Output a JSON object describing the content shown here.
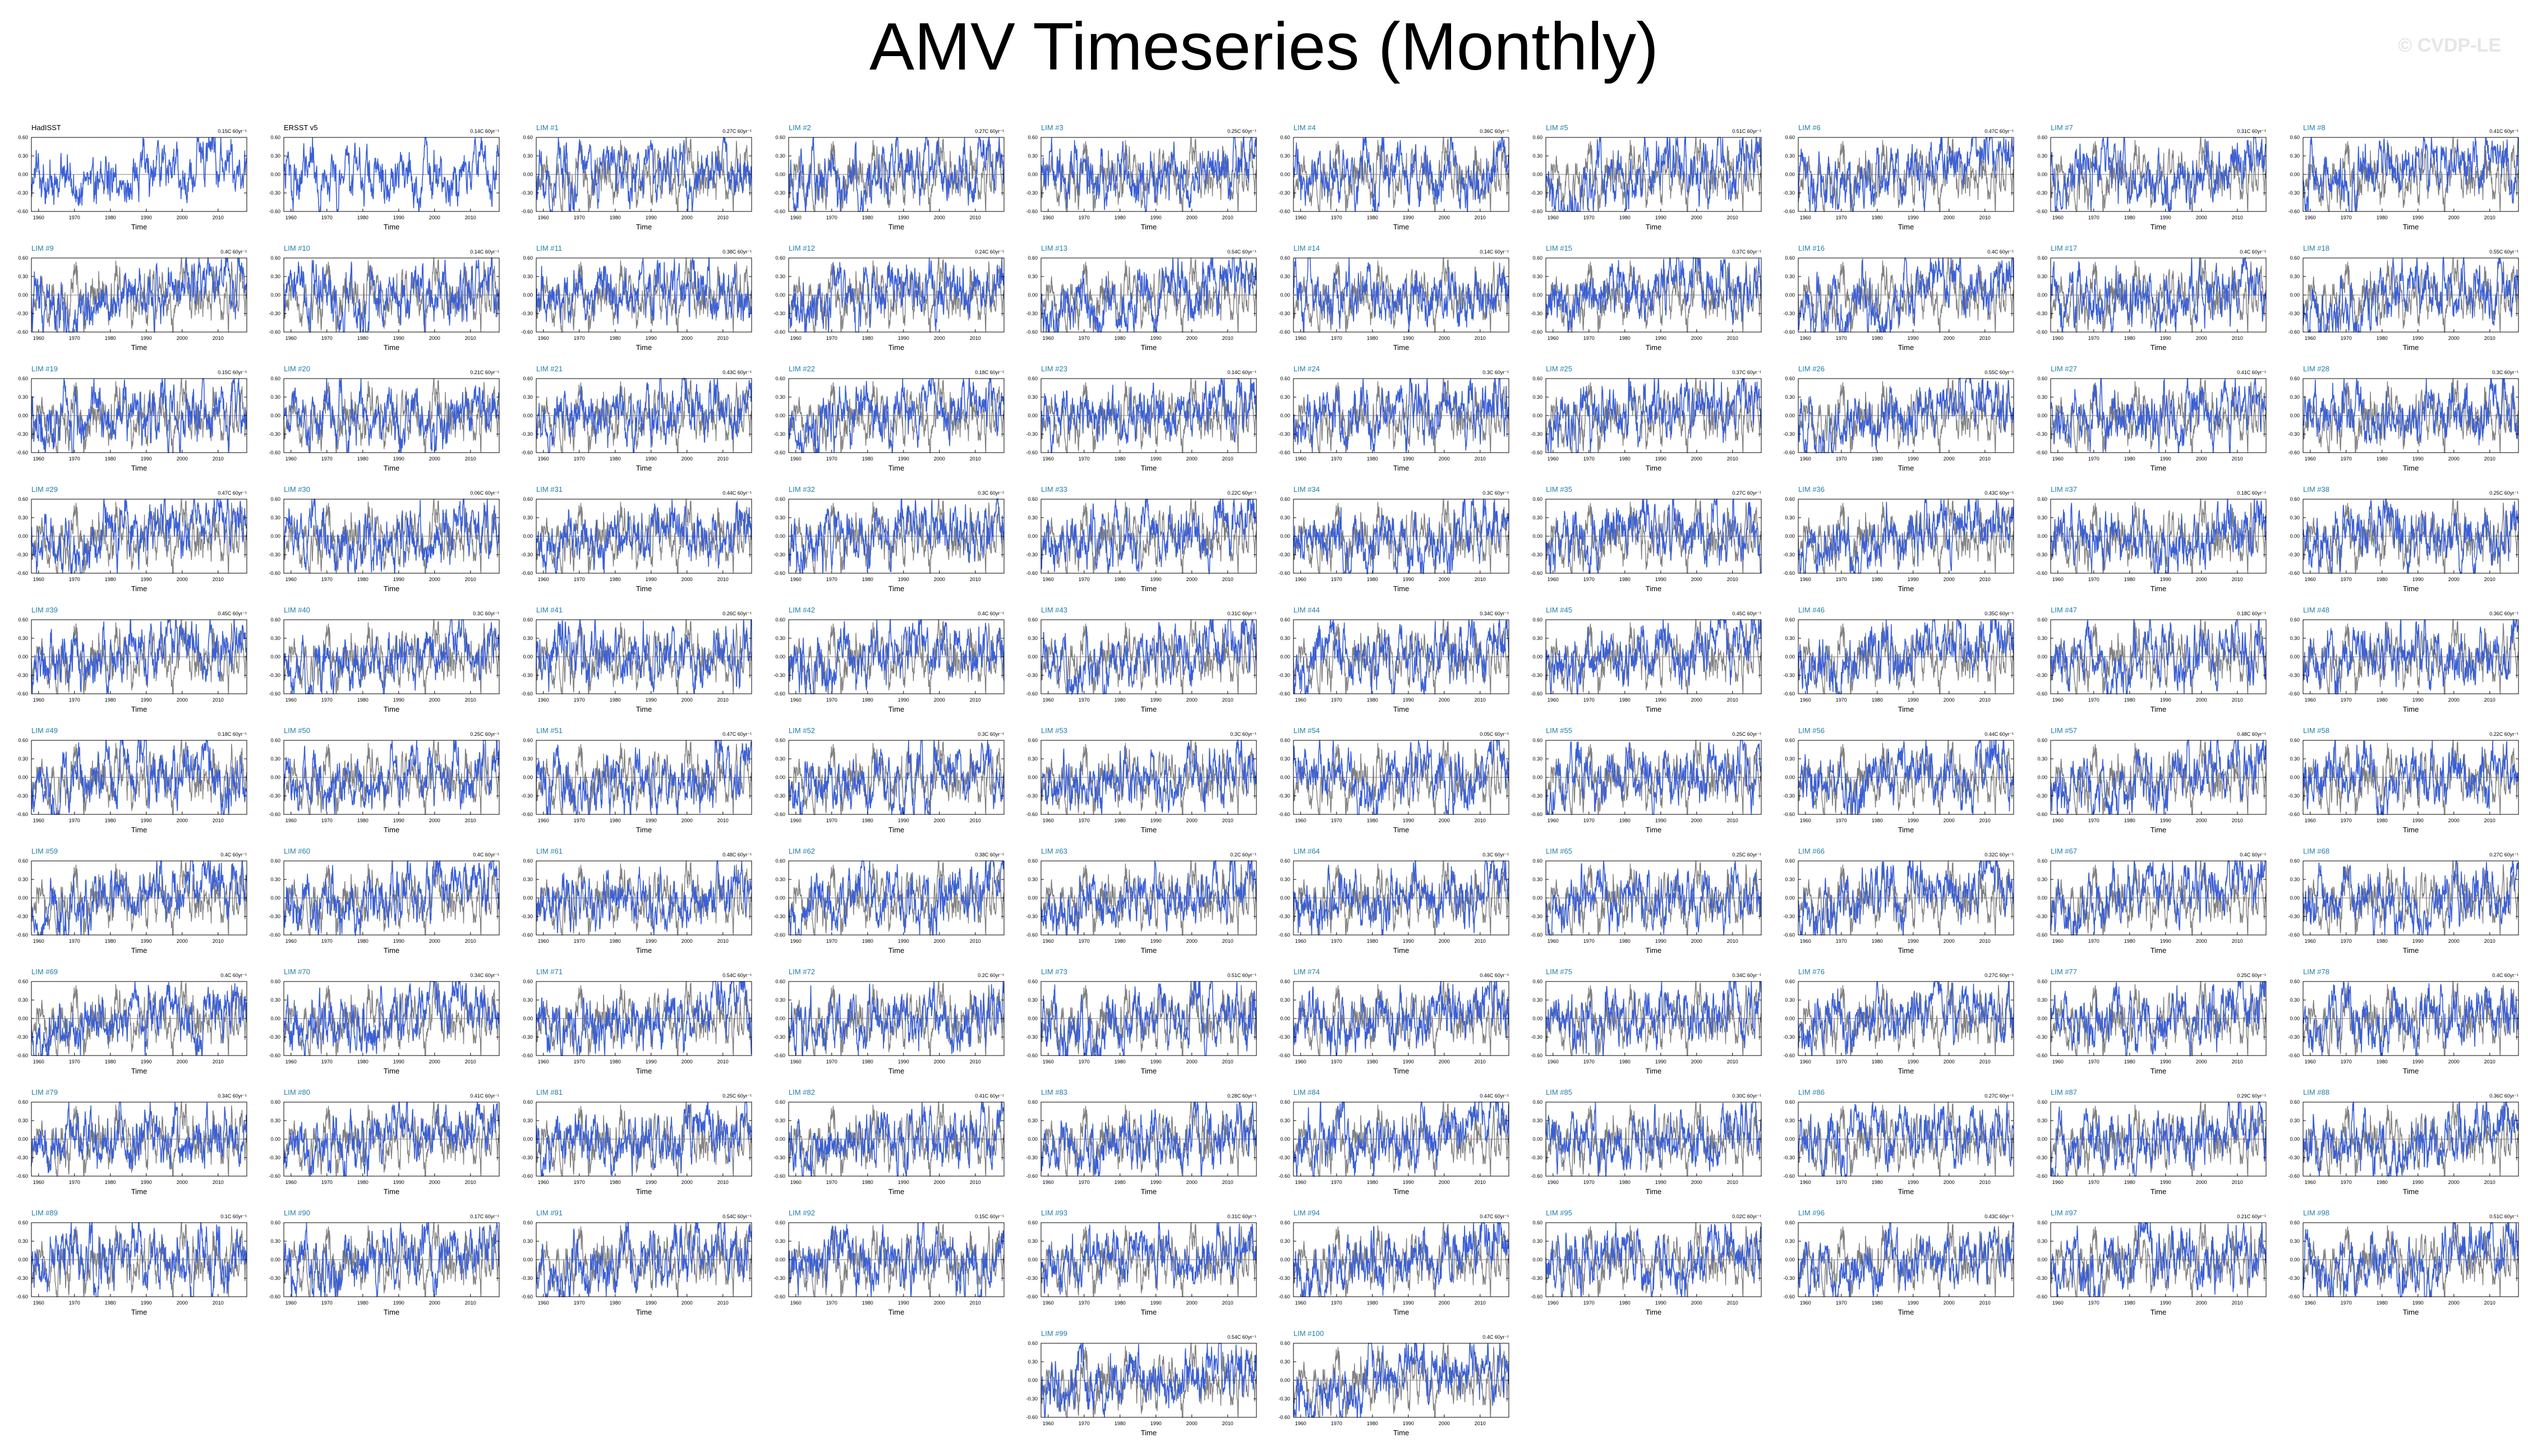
{
  "page": {
    "title": "AMV Timeseries (Monthly)",
    "watermark": "© CVDP-LE"
  },
  "style": {
    "member_color": "#3a5fd6",
    "obs_color": "#808080",
    "member_title_color": "#1f7fa8",
    "obs_title_color": "#000000"
  },
  "chart_data": {
    "type": "line",
    "xlabel": "Time",
    "ylabel": "",
    "xlim": [
      1958,
      2018
    ],
    "ylim": [
      -0.6,
      0.6
    ],
    "x_ticks": [
      1960,
      1970,
      1980,
      1990,
      2000,
      2010
    ],
    "y_ticks": [
      "-0.60",
      "-0.30",
      "0.00",
      "0.30",
      "0.60"
    ],
    "series_note": "blue = ensemble member; gray = observations",
    "panels": [
      {
        "title": "HadISST",
        "trend": "0.15C 60yr⁻¹",
        "kind": "obs"
      },
      {
        "title": "ERSST v5",
        "trend": "0.14C 60yr⁻¹",
        "kind": "obs"
      },
      {
        "title": "LIM #1",
        "trend": "0.27C 60yr⁻¹"
      },
      {
        "title": "LIM #2",
        "trend": "0.27C 60yr⁻¹"
      },
      {
        "title": "LIM #3",
        "trend": "0.25C 60yr⁻¹"
      },
      {
        "title": "LIM #4",
        "trend": "0.36C 60yr⁻¹"
      },
      {
        "title": "LIM #5",
        "trend": "0.51C 60yr⁻¹"
      },
      {
        "title": "LIM #6",
        "trend": "0.47C 60yr⁻¹"
      },
      {
        "title": "LIM #7",
        "trend": "0.31C 60yr⁻¹"
      },
      {
        "title": "LIM #8",
        "trend": "0.41C 60yr⁻¹"
      },
      {
        "title": "LIM #9",
        "trend": "0.4C 60yr⁻¹"
      },
      {
        "title": "LIM #10",
        "trend": "0.14C 60yr⁻¹"
      },
      {
        "title": "LIM #11",
        "trend": "0.38C 60yr⁻¹"
      },
      {
        "title": "LIM #12",
        "trend": "0.24C 60yr⁻¹"
      },
      {
        "title": "LIM #13",
        "trend": "0.54C 60yr⁻¹"
      },
      {
        "title": "LIM #14",
        "trend": "0.14C 60yr⁻¹"
      },
      {
        "title": "LIM #15",
        "trend": "0.37C 60yr⁻¹"
      },
      {
        "title": "LIM #16",
        "trend": "0.4C 60yr⁻¹"
      },
      {
        "title": "LIM #17",
        "trend": "0.4C 60yr⁻¹"
      },
      {
        "title": "LIM #18",
        "trend": "0.55C 60yr⁻¹"
      },
      {
        "title": "LIM #19",
        "trend": "0.15C 60yr⁻¹"
      },
      {
        "title": "LIM #20",
        "trend": "0.21C 60yr⁻¹"
      },
      {
        "title": "LIM #21",
        "trend": "0.43C 60yr⁻¹"
      },
      {
        "title": "LIM #22",
        "trend": "0.18C 60yr⁻¹"
      },
      {
        "title": "LIM #23",
        "trend": "0.14C 60yr⁻¹"
      },
      {
        "title": "LIM #24",
        "trend": "0.3C 60yr⁻¹"
      },
      {
        "title": "LIM #25",
        "trend": "0.37C 60yr⁻¹"
      },
      {
        "title": "LIM #26",
        "trend": "0.55C 60yr⁻¹"
      },
      {
        "title": "LIM #27",
        "trend": "0.41C 60yr⁻¹"
      },
      {
        "title": "LIM #28",
        "trend": "0.3C 60yr⁻¹"
      },
      {
        "title": "LIM #29",
        "trend": "0.47C 60yr⁻¹"
      },
      {
        "title": "LIM #30",
        "trend": "0.06C 60yr⁻¹"
      },
      {
        "title": "LIM #31",
        "trend": "0.44C 60yr⁻¹"
      },
      {
        "title": "LIM #32",
        "trend": "0.3C 60yr⁻¹"
      },
      {
        "title": "LIM #33",
        "trend": "0.22C 60yr⁻¹"
      },
      {
        "title": "LIM #34",
        "trend": "0.3C 60yr⁻¹"
      },
      {
        "title": "LIM #35",
        "trend": "0.27C 60yr⁻¹"
      },
      {
        "title": "LIM #36",
        "trend": "0.43C 60yr⁻¹"
      },
      {
        "title": "LIM #37",
        "trend": "0.18C 60yr⁻¹"
      },
      {
        "title": "LIM #38",
        "trend": "0.25C 60yr⁻¹"
      },
      {
        "title": "LIM #39",
        "trend": "0.45C 60yr⁻¹"
      },
      {
        "title": "LIM #40",
        "trend": "0.3C 60yr⁻¹"
      },
      {
        "title": "LIM #41",
        "trend": "0.26C 60yr⁻¹"
      },
      {
        "title": "LIM #42",
        "trend": "0.4C 60yr⁻¹"
      },
      {
        "title": "LIM #43",
        "trend": "0.31C 60yr⁻¹"
      },
      {
        "title": "LIM #44",
        "trend": "0.34C 60yr⁻¹"
      },
      {
        "title": "LIM #45",
        "trend": "0.45C 60yr⁻¹"
      },
      {
        "title": "LIM #46",
        "trend": "0.35C 60yr⁻¹"
      },
      {
        "title": "LIM #47",
        "trend": "0.18C 60yr⁻¹"
      },
      {
        "title": "LIM #48",
        "trend": "0.36C 60yr⁻¹"
      },
      {
        "title": "LIM #49",
        "trend": "0.18C 60yr⁻¹"
      },
      {
        "title": "LIM #50",
        "trend": "0.25C 60yr⁻¹"
      },
      {
        "title": "LIM #51",
        "trend": "0.47C 60yr⁻¹"
      },
      {
        "title": "LIM #52",
        "trend": "0.3C 60yr⁻¹"
      },
      {
        "title": "LIM #53",
        "trend": "0.3C 60yr⁻¹"
      },
      {
        "title": "LIM #54",
        "trend": "0.05C 60yr⁻¹"
      },
      {
        "title": "LIM #55",
        "trend": "0.25C 60yr⁻¹"
      },
      {
        "title": "LIM #56",
        "trend": "0.44C 60yr⁻¹"
      },
      {
        "title": "LIM #57",
        "trend": "0.48C 60yr⁻¹"
      },
      {
        "title": "LIM #58",
        "trend": "0.22C 60yr⁻¹"
      },
      {
        "title": "LIM #59",
        "trend": "0.4C 60yr⁻¹"
      },
      {
        "title": "LIM #60",
        "trend": "0.4C 60yr⁻¹"
      },
      {
        "title": "LIM #61",
        "trend": "0.48C 60yr⁻¹"
      },
      {
        "title": "LIM #62",
        "trend": "0.38C 60yr⁻¹"
      },
      {
        "title": "LIM #63",
        "trend": "0.2C 60yr⁻¹"
      },
      {
        "title": "LIM #64",
        "trend": "0.3C 60yr⁻¹"
      },
      {
        "title": "LIM #65",
        "trend": "0.25C 60yr⁻¹"
      },
      {
        "title": "LIM #66",
        "trend": "0.32C 60yr⁻¹"
      },
      {
        "title": "LIM #67",
        "trend": "0.4C 60yr⁻¹"
      },
      {
        "title": "LIM #68",
        "trend": "0.27C 60yr⁻¹"
      },
      {
        "title": "LIM #69",
        "trend": "0.4C 60yr⁻¹"
      },
      {
        "title": "LIM #70",
        "trend": "0.34C 60yr⁻¹"
      },
      {
        "title": "LIM #71",
        "trend": "0.54C 60yr⁻¹"
      },
      {
        "title": "LIM #72",
        "trend": "0.2C 60yr⁻¹"
      },
      {
        "title": "LIM #73",
        "trend": "0.51C 60yr⁻¹"
      },
      {
        "title": "LIM #74",
        "trend": "0.46C 60yr⁻¹"
      },
      {
        "title": "LIM #75",
        "trend": "0.34C 60yr⁻¹"
      },
      {
        "title": "LIM #76",
        "trend": "0.27C 60yr⁻¹"
      },
      {
        "title": "LIM #77",
        "trend": "0.25C 60yr⁻¹"
      },
      {
        "title": "LIM #78",
        "trend": "0.4C 60yr⁻¹"
      },
      {
        "title": "LIM #79",
        "trend": "0.34C 60yr⁻¹"
      },
      {
        "title": "LIM #80",
        "trend": "0.41C 60yr⁻¹"
      },
      {
        "title": "LIM #81",
        "trend": "0.25C 60yr⁻¹"
      },
      {
        "title": "LIM #82",
        "trend": "0.41C 60yr⁻¹"
      },
      {
        "title": "LIM #83",
        "trend": "0.28C 60yr⁻¹"
      },
      {
        "title": "LIM #84",
        "trend": "0.44C 60yr⁻¹"
      },
      {
        "title": "LIM #85",
        "trend": "0.30C 60yr⁻¹"
      },
      {
        "title": "LIM #86",
        "trend": "0.27C 60yr⁻¹"
      },
      {
        "title": "LIM #87",
        "trend": "0.29C 60yr⁻¹"
      },
      {
        "title": "LIM #88",
        "trend": "0.36C 60yr⁻¹"
      },
      {
        "title": "LIM #89",
        "trend": "0.1C 60yr⁻¹"
      },
      {
        "title": "LIM #90",
        "trend": "0.17C 60yr⁻¹"
      },
      {
        "title": "LIM #91",
        "trend": "0.54C 60yr⁻¹"
      },
      {
        "title": "LIM #92",
        "trend": "0.15C 60yr⁻¹"
      },
      {
        "title": "LIM #93",
        "trend": "0.31C 60yr⁻¹"
      },
      {
        "title": "LIM #94",
        "trend": "0.47C 60yr⁻¹"
      },
      {
        "title": "LIM #95",
        "trend": "0.02C 60yr⁻¹"
      },
      {
        "title": "LIM #96",
        "trend": "0.43C 60yr⁻¹"
      },
      {
        "title": "LIM #97",
        "trend": "0.21C 60yr⁻¹"
      },
      {
        "title": "LIM #98",
        "trend": "0.51C 60yr⁻¹"
      },
      {
        "title": "LIM #99",
        "trend": "0.54C 60yr⁻¹"
      },
      {
        "title": "LIM #100",
        "trend": "0.4C 60yr⁻¹"
      }
    ]
  }
}
